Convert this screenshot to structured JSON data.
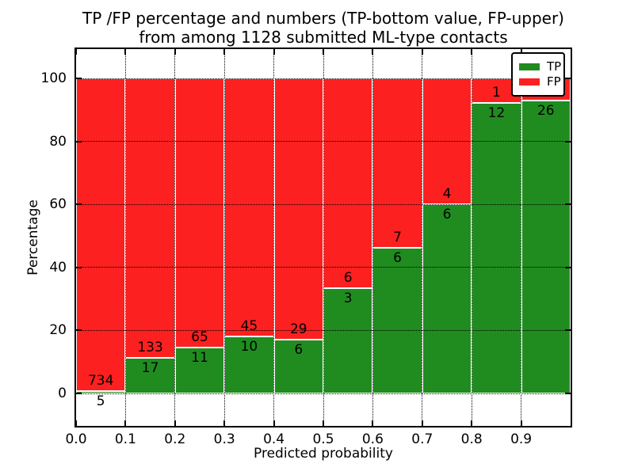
{
  "chart_data": {
    "type": "bar",
    "stacked": true,
    "title": "TP /FP percentage and numbers (TP-bottom value, FP-upper) from among 1128 submitted ML-type contacts",
    "title_lines": [
      "TP /FP percentage and numbers (TP-bottom value, FP-upper)",
      "from among 1128 submitted ML-type contacts"
    ],
    "xlabel": "Predicted probability",
    "ylabel": "Percentage",
    "total_contacts": 1128,
    "xlim": [
      0.0,
      1.0
    ],
    "ylim": [
      -10.3,
      109.3
    ],
    "grid": true,
    "grid_style": "dotted",
    "bin_width": 0.1,
    "x_tick_labels": [
      "0.0",
      "0.1",
      "0.2",
      "0.3",
      "0.4",
      "0.5",
      "0.6",
      "0.7",
      "0.8",
      "0.9"
    ],
    "y_tick_values": [
      0,
      20,
      40,
      60,
      80,
      100
    ],
    "y_tick_labels": [
      "0",
      "20",
      "40",
      "60",
      "80",
      "100"
    ],
    "series": [
      {
        "name": "TP",
        "color": "#208c20",
        "counts": [
          5,
          17,
          11,
          10,
          6,
          3,
          6,
          6,
          12,
          26
        ],
        "values_pct": [
          0.68,
          11.33,
          14.47,
          18.18,
          17.14,
          33.33,
          46.15,
          60.0,
          92.31,
          92.86
        ]
      },
      {
        "name": "FP",
        "color": "#fc2020",
        "counts": [
          734,
          133,
          65,
          45,
          29,
          6,
          7,
          4,
          1,
          2
        ],
        "values_pct": [
          99.32,
          88.67,
          85.53,
          81.82,
          82.86,
          66.67,
          53.85,
          40.0,
          7.69,
          7.14
        ]
      }
    ],
    "bins": [
      {
        "range": "0.0-0.1",
        "tp_count": 5,
        "fp_count": 734
      },
      {
        "range": "0.1-0.2",
        "tp_count": 17,
        "fp_count": 133
      },
      {
        "range": "0.2-0.3",
        "tp_count": 11,
        "fp_count": 65
      },
      {
        "range": "0.3-0.4",
        "tp_count": 10,
        "fp_count": 45
      },
      {
        "range": "0.4-0.5",
        "tp_count": 6,
        "fp_count": 29
      },
      {
        "range": "0.5-0.6",
        "tp_count": 3,
        "fp_count": 6
      },
      {
        "range": "0.6-0.7",
        "tp_count": 6,
        "fp_count": 7
      },
      {
        "range": "0.7-0.8",
        "tp_count": 6,
        "fp_count": 4
      },
      {
        "range": "0.8-0.9",
        "tp_count": 12,
        "fp_count": 1
      },
      {
        "range": "0.9-1.0",
        "tp_count": 26,
        "fp_count": 2
      }
    ],
    "legend": {
      "position": "upper right",
      "entries": [
        {
          "label": "TP",
          "color": "#208c20"
        },
        {
          "label": "FP",
          "color": "#fc2020"
        }
      ]
    }
  }
}
